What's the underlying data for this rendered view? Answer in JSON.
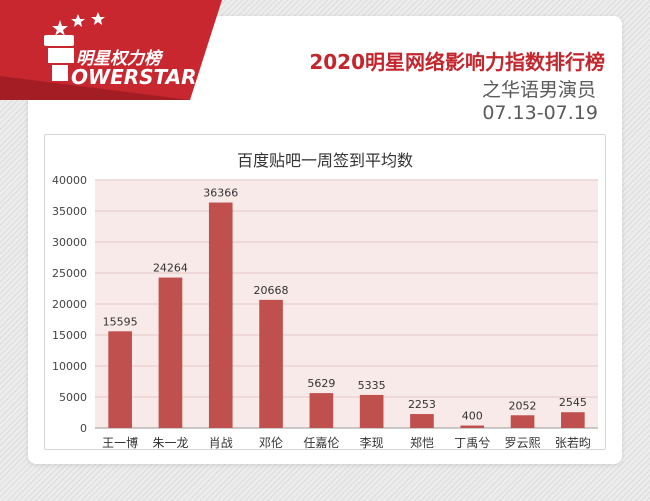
{
  "brand": {
    "logo_text_cn": "明星权力榜",
    "logo_text_en": "OWERSTAR"
  },
  "header": {
    "title": "2020明星网络影响力指数排行榜",
    "subtitle": "之华语男演员",
    "date_range": "07.13-07.19"
  },
  "colors": {
    "accent": "#c4262e",
    "bar": "#c0504d",
    "plot_bg": "#f9eaea"
  },
  "chart_data": {
    "type": "bar",
    "title": "百度贴吧一周签到平均数",
    "categories": [
      "王一博",
      "朱一龙",
      "肖战",
      "邓伦",
      "任嘉伦",
      "李现",
      "郑恺",
      "丁禹兮",
      "罗云熙",
      "张若昀"
    ],
    "values": [
      15595,
      24264,
      36366,
      20668,
      5629,
      5335,
      2253,
      400,
      2052,
      2545
    ],
    "ylim": [
      0,
      40000
    ],
    "yticks": [
      0,
      5000,
      10000,
      15000,
      20000,
      25000,
      30000,
      35000,
      40000
    ],
    "grid": true,
    "data_labels": true
  }
}
